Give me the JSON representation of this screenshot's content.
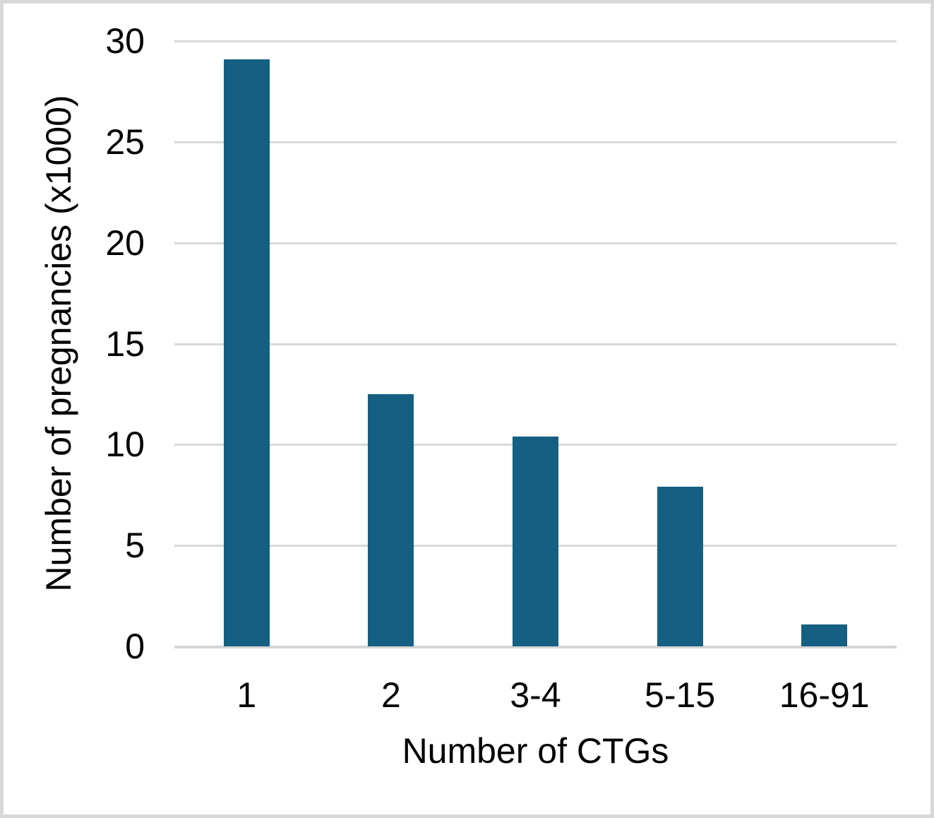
{
  "chart_data": {
    "type": "bar",
    "title": "",
    "xlabel": "Number of CTGs",
    "ylabel": "Number of pregnancies (x1000)",
    "categories": [
      "1",
      "2",
      "3-4",
      "5-15",
      "16-91"
    ],
    "values": [
      29.1,
      12.5,
      10.4,
      7.9,
      1.1
    ],
    "ylim": [
      0,
      30
    ],
    "yticks": [
      0,
      5,
      10,
      15,
      20,
      25,
      30
    ],
    "grid": true,
    "legend": "none",
    "bar_color": "#156082",
    "gridline_color": "#d9d9d9",
    "axis_line_color": "#d5d5d5",
    "text_color": "#000000",
    "background_color": "#ffffff",
    "frame_border_color": "#d8d8d8"
  }
}
